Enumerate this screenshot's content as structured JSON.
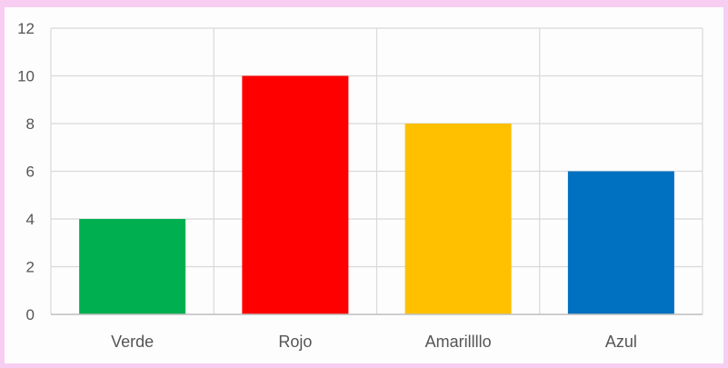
{
  "chart_data": {
    "type": "bar",
    "categories": [
      "Verde",
      "Rojo",
      "Amarillo",
      "Azul"
    ],
    "category_labels": [
      "Verde",
      "Rojo",
      "Amarillllo",
      "Azul"
    ],
    "values": [
      4,
      10,
      8,
      6
    ],
    "colors": [
      "#00b050",
      "#ff0000",
      "#ffc000",
      "#0070c0"
    ],
    "title": "",
    "xlabel": "",
    "ylabel": "",
    "ylim": [
      0,
      12
    ],
    "yticks": [
      0,
      2,
      4,
      6,
      8,
      10,
      12
    ],
    "grid": true,
    "legend": "none"
  }
}
